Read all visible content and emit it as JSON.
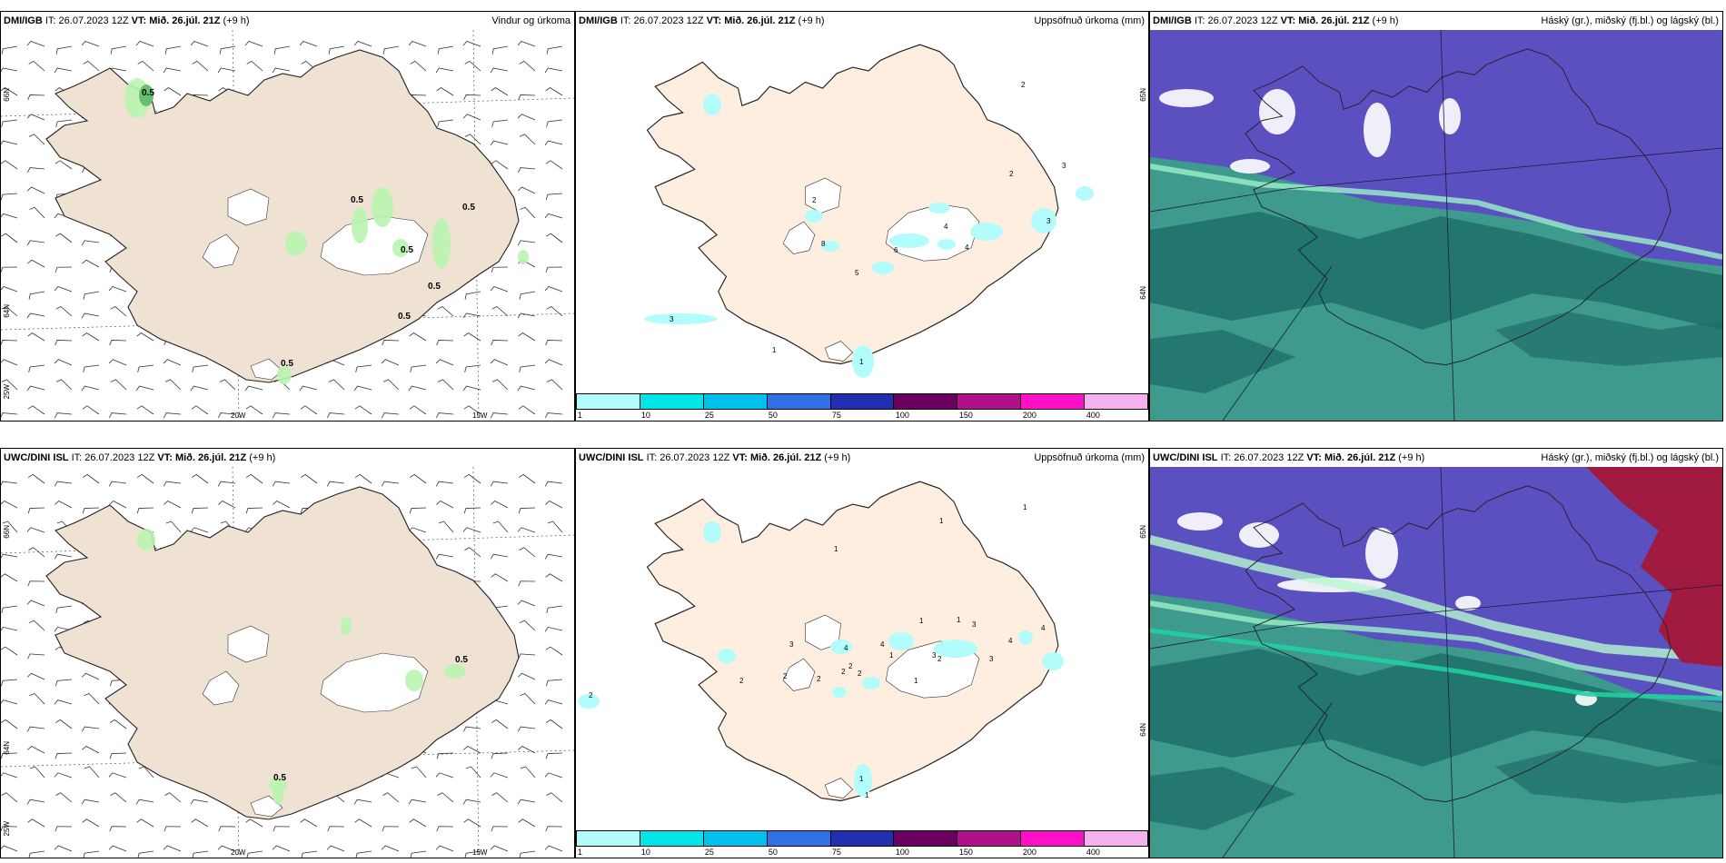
{
  "rows": [
    {
      "model": "DMI/IGB",
      "it_label": "IT:",
      "it_value": "26.07.2023 12Z",
      "vt_label": "VT:",
      "vt_value": "Mið. 26.júl. 21Z",
      "lead": "(+9 h)",
      "panels": {
        "wind": {
          "title": "Vindur og úrkoma",
          "labels": [
            "0.5",
            "0.5",
            "0.5",
            "0.5",
            "0.5",
            "0.5",
            "0.5"
          ]
        },
        "precip": {
          "title": "Uppsöfnuð úrkoma (mm)",
          "labels": [
            "2",
            "2",
            "2",
            "3",
            "3",
            "4",
            "4",
            "5",
            "6",
            "3",
            "8",
            "1",
            "1"
          ]
        },
        "cloud": {
          "title": "Háský (gr.), miðský (fj.bl.) og lágský (bl.)"
        }
      }
    },
    {
      "model": "UWC/DINI ISL",
      "it_label": "IT:",
      "it_value": "26.07.2023 12Z",
      "vt_label": "VT:",
      "vt_value": "Mið. 26.júl. 21Z",
      "lead": "(+9 h)",
      "panels": {
        "wind": {
          "title": "",
          "labels": [
            "0.5",
            "0.5"
          ]
        },
        "precip": {
          "title": "Uppsöfnuð úrkoma (mm)",
          "labels": [
            "2",
            "1",
            "1",
            "1",
            "1",
            "1",
            "3",
            "4",
            "4",
            "3",
            "2",
            "1",
            "2",
            "4",
            "4",
            "3",
            "2",
            "2",
            "2",
            "1",
            "1",
            "1",
            "2",
            "2",
            "3"
          ]
        },
        "cloud": {
          "title": "Háský (gr.), miðský (fj.bl.) og lágský (bl.)"
        }
      }
    }
  ],
  "axis_labels": {
    "lon": [
      "20W",
      "15W"
    ],
    "lat": [
      "66N",
      "64N",
      "25W"
    ],
    "lat_precip": [
      "65N",
      "64N"
    ]
  },
  "colorbar": {
    "ticks": [
      "1",
      "10",
      "25",
      "50",
      "75",
      "100",
      "150",
      "200",
      "400"
    ],
    "colors": [
      "#b3fcfc",
      "#00e6e6",
      "#00c0ee",
      "#3070e6",
      "#2030b0",
      "#6b0060",
      "#b0108a",
      "#ff10c8",
      "#f5b0f0"
    ]
  },
  "colors": {
    "land": "#efe2d2",
    "land_precip": "#fdeee0",
    "precip_light": "#b3fcfc",
    "green_light": "#b8f5b0",
    "green_mid": "#66c070",
    "cloud_teal": "#3d9a8c",
    "cloud_dark_teal": "#1f6e6a",
    "cloud_purple": "#5a50c0",
    "cloud_red": "#a01a40"
  }
}
